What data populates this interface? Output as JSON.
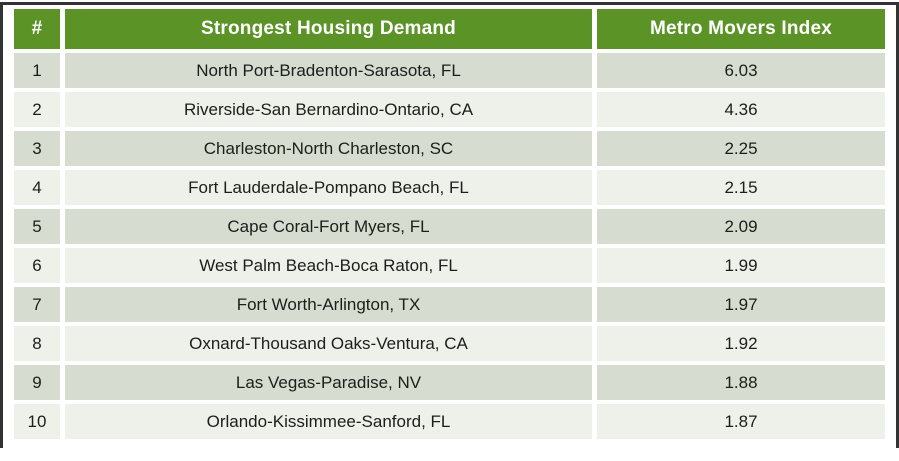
{
  "table": {
    "columns": [
      {
        "label": "#"
      },
      {
        "label": "Strongest Housing Demand"
      },
      {
        "label": "Metro Movers Index"
      }
    ],
    "rows": [
      {
        "rank": "1",
        "metro": "North Port-Bradenton-Sarasota, FL",
        "index": "6.03"
      },
      {
        "rank": "2",
        "metro": "Riverside-San Bernardino-Ontario, CA",
        "index": "4.36"
      },
      {
        "rank": "3",
        "metro": "Charleston-North Charleston, SC",
        "index": "2.25"
      },
      {
        "rank": "4",
        "metro": "Fort Lauderdale-Pompano Beach, FL",
        "index": "2.15"
      },
      {
        "rank": "5",
        "metro": "Cape Coral-Fort Myers, FL",
        "index": "2.09"
      },
      {
        "rank": "6",
        "metro": "West Palm Beach-Boca Raton, FL",
        "index": "1.99"
      },
      {
        "rank": "7",
        "metro": "Fort Worth-Arlington, TX",
        "index": "1.97"
      },
      {
        "rank": "8",
        "metro": "Oxnard-Thousand Oaks-Ventura, CA",
        "index": "1.92"
      },
      {
        "rank": "9",
        "metro": "Las Vegas-Paradise, NV",
        "index": "1.88"
      },
      {
        "rank": "10",
        "metro": "Orlando-Kissimmee-Sanford, FL",
        "index": "1.87"
      }
    ],
    "colors": {
      "header_bg": "#5b9327",
      "header_text": "#ffffff",
      "row_odd": "#d6ddd0",
      "row_even": "#eef1e9",
      "frame_border": "#333333",
      "text": "#1d1d1b"
    }
  }
}
